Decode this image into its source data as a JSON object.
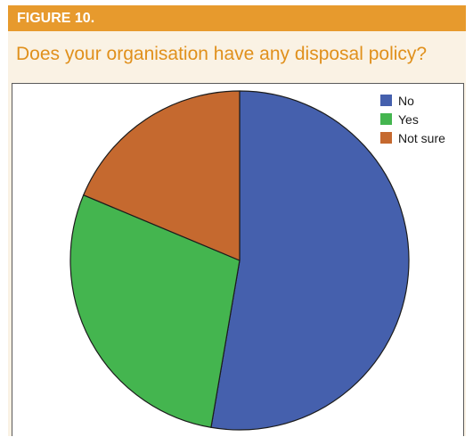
{
  "figure": {
    "label": "FIGURE 10.",
    "title": "Does your organisation have any disposal policy?"
  },
  "colors": {
    "header_bg": "#e79a2d",
    "title_text": "#e0901c",
    "panel_bg": "#faf2e4"
  },
  "chart_data": {
    "type": "pie",
    "title": "Does your organisation have any disposal policy?",
    "legend_position": "top-right",
    "slices": [
      {
        "label": "No",
        "value": 52.7,
        "color": "#4560ad"
      },
      {
        "label": "Yes",
        "value": 28.6,
        "color": "#44b54f"
      },
      {
        "label": "Not sure",
        "value": 18.7,
        "color": "#c5692f"
      }
    ]
  }
}
